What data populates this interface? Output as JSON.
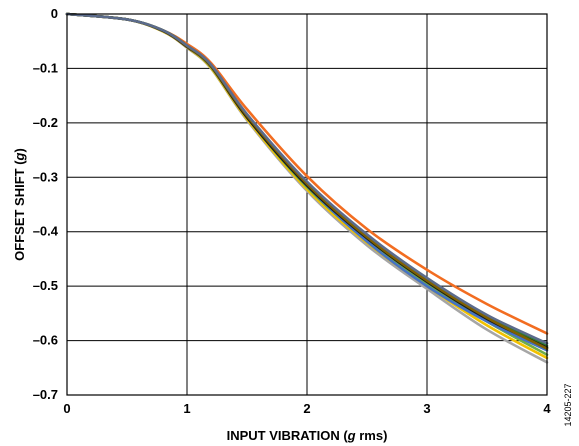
{
  "chart_data": {
    "type": "line",
    "xlabel": {
      "main": "INPUT VIBRATION (",
      "italic": "g",
      "rest": " rms)"
    },
    "ylabel": {
      "main": "OFFSET SHIFT (",
      "italic": "g",
      "rest": ")"
    },
    "xlim": [
      0,
      4
    ],
    "ylim": [
      -0.7,
      0
    ],
    "x_ticks": [
      0,
      1,
      2,
      3,
      4
    ],
    "x_tick_labels": [
      "0",
      "1",
      "2",
      "3",
      "4"
    ],
    "y_ticks": [
      0,
      -0.1,
      -0.2,
      -0.3,
      -0.4,
      -0.5,
      -0.6,
      -0.7
    ],
    "y_tick_labels": [
      "0",
      "–0.1",
      "–0.2",
      "–0.3",
      "–0.4",
      "–0.5",
      "–0.6",
      "–0.7"
    ],
    "grid": true,
    "legend": "none",
    "figure_id": "14205-227",
    "series": [
      {
        "color": "#f26d21",
        "x": [
          0,
          0.5,
          0.8,
          1.0,
          1.2,
          1.5,
          2.0,
          2.5,
          3.0,
          3.5,
          4.0
        ],
        "y": [
          0,
          -0.01,
          -0.03,
          -0.055,
          -0.09,
          -0.175,
          -0.298,
          -0.395,
          -0.47,
          -0.533,
          -0.587
        ]
      },
      {
        "color": "#a6a6a6",
        "x": [
          0,
          0.5,
          0.8,
          1.0,
          1.2,
          1.5,
          2.0,
          2.5,
          3.0,
          3.5,
          4.0
        ],
        "y": [
          0,
          -0.01,
          -0.032,
          -0.062,
          -0.1,
          -0.195,
          -0.325,
          -0.425,
          -0.505,
          -0.58,
          -0.64
        ]
      },
      {
        "color": "#f2c200",
        "x": [
          0,
          0.5,
          0.8,
          1.0,
          1.2,
          1.5,
          2.0,
          2.5,
          3.0,
          3.5,
          4.0
        ],
        "y": [
          0,
          -0.01,
          -0.032,
          -0.061,
          -0.099,
          -0.193,
          -0.322,
          -0.42,
          -0.5,
          -0.572,
          -0.632
        ]
      },
      {
        "color": "#70ad47",
        "x": [
          0,
          0.5,
          0.8,
          1.0,
          1.2,
          1.5,
          2.0,
          2.5,
          3.0,
          3.5,
          4.0
        ],
        "y": [
          0,
          -0.01,
          -0.031,
          -0.06,
          -0.097,
          -0.19,
          -0.318,
          -0.416,
          -0.495,
          -0.565,
          -0.626
        ]
      },
      {
        "color": "#4472c4",
        "x": [
          0,
          0.5,
          0.8,
          1.0,
          1.2,
          1.5,
          2.0,
          2.5,
          3.0,
          3.5,
          4.0
        ],
        "y": [
          0,
          -0.01,
          -0.031,
          -0.06,
          -0.096,
          -0.188,
          -0.315,
          -0.418,
          -0.5,
          -0.565,
          -0.618
        ]
      },
      {
        "color": "#2e7d32",
        "x": [
          0,
          0.5,
          0.8,
          1.0,
          1.2,
          1.5,
          2.0,
          2.5,
          3.0,
          3.5,
          4.0
        ],
        "y": [
          0,
          -0.01,
          -0.03,
          -0.058,
          -0.094,
          -0.186,
          -0.31,
          -0.408,
          -0.488,
          -0.555,
          -0.61
        ]
      },
      {
        "color": "#1a1a1a",
        "x": [
          0,
          0.5,
          0.8,
          1.0,
          1.2,
          1.5,
          2.0,
          2.5,
          3.0,
          3.5,
          4.0
        ],
        "y": [
          0,
          -0.01,
          -0.031,
          -0.06,
          -0.096,
          -0.19,
          -0.315,
          -0.412,
          -0.492,
          -0.56,
          -0.613
        ]
      },
      {
        "color": "#7f6000",
        "x": [
          0,
          0.5,
          0.8,
          1.0,
          1.2,
          1.5,
          2.0,
          2.5,
          3.0,
          3.5,
          4.0
        ],
        "y": [
          0,
          -0.01,
          -0.03,
          -0.059,
          -0.095,
          -0.187,
          -0.312,
          -0.41,
          -0.49,
          -0.558,
          -0.615
        ]
      },
      {
        "color": "#5b6b8c",
        "x": [
          0,
          0.5,
          0.8,
          1.0,
          1.2,
          1.5,
          2.0,
          2.5,
          3.0,
          3.5,
          4.0
        ],
        "y": [
          0,
          -0.01,
          -0.03,
          -0.058,
          -0.093,
          -0.184,
          -0.308,
          -0.405,
          -0.485,
          -0.553,
          -0.605
        ]
      }
    ]
  }
}
